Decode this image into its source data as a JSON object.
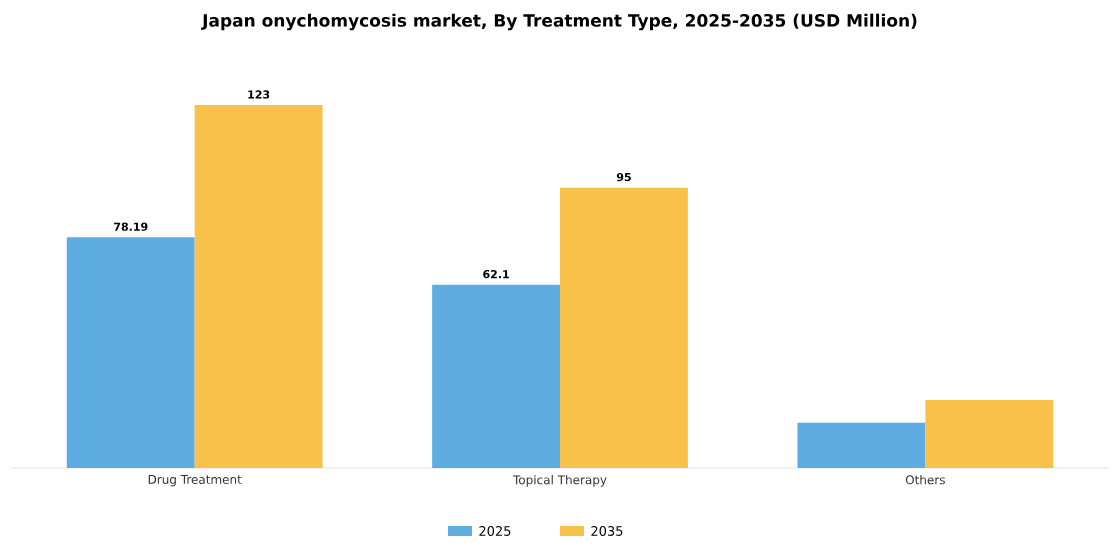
{
  "chart_data": {
    "type": "bar",
    "title": "Japan onychomycosis market, By Treatment Type, 2025-2035 (USD Million)",
    "categories": [
      "Drug Treatment",
      "Topical Therapy",
      "Others"
    ],
    "series": [
      {
        "name": "2025",
        "color": "#5dade2",
        "values": [
          78.19,
          62.1,
          15.3
        ],
        "value_labels": [
          "78.19",
          "62.1",
          null
        ]
      },
      {
        "name": "2035",
        "color": "#f8c14a",
        "values": [
          123,
          95,
          23.0
        ],
        "value_labels": [
          "123",
          "95",
          null
        ]
      }
    ],
    "legend": "bottom"
  }
}
